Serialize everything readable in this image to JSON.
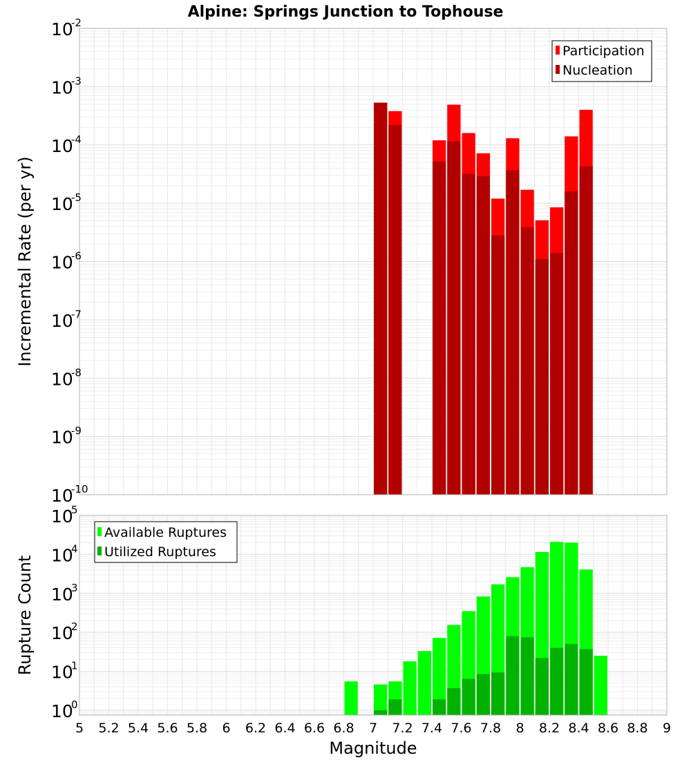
{
  "chart_data": [
    {
      "type": "bar",
      "title": "Alpine: Springs Junction to Tophouse",
      "ylabel": "Incremental Rate (per yr)",
      "xlabel": "",
      "yscale": "log",
      "ylim": [
        1e-10,
        0.01
      ],
      "xlim": [
        5,
        9
      ],
      "bar_width": 0.1,
      "grid": true,
      "legend_position": "top-right",
      "y_tick_labels": [
        {
          "base": "10",
          "exp": "-10",
          "value": 1e-10
        },
        {
          "base": "10",
          "exp": "-9",
          "value": 1e-09
        },
        {
          "base": "10",
          "exp": "-8",
          "value": 1e-08
        },
        {
          "base": "10",
          "exp": "-7",
          "value": 1e-07
        },
        {
          "base": "10",
          "exp": "-6",
          "value": 1e-06
        },
        {
          "base": "10",
          "exp": "-5",
          "value": 1e-05
        },
        {
          "base": "10",
          "exp": "-4",
          "value": 0.0001
        },
        {
          "base": "10",
          "exp": "-3",
          "value": 0.001
        },
        {
          "base": "10",
          "exp": "-2",
          "value": 0.01
        }
      ],
      "x": [
        7.05,
        7.15,
        7.45,
        7.55,
        7.65,
        7.75,
        7.85,
        7.95,
        8.05,
        8.15,
        8.25,
        8.35,
        8.45
      ],
      "series": [
        {
          "name": "Participation",
          "color": "#ff0000",
          "values": [
            0.00053,
            0.00038,
            0.00012,
            0.00049,
            0.00016,
            7.2e-05,
            1.2e-05,
            0.00013,
            1.7e-05,
            5.1e-06,
            8.5e-06,
            0.00014,
            0.0004
          ]
        },
        {
          "name": "Nucleation",
          "color": "#b20000",
          "values": [
            0.00053,
            0.00022,
            5.2e-05,
            0.000115,
            3.2e-05,
            2.9e-05,
            2.8e-06,
            3.7e-05,
            3.9e-06,
            1.1e-06,
            1.4e-06,
            1.6e-05,
            4.3e-05
          ]
        }
      ]
    },
    {
      "type": "bar",
      "title": "",
      "ylabel": "Rupture Count",
      "xlabel": "Magnitude",
      "yscale": "log",
      "ylim": [
        0.75,
        100000.0
      ],
      "xlim": [
        5,
        9
      ],
      "bar_width": 0.1,
      "grid": true,
      "legend_position": "top-left",
      "y_tick_labels": [
        {
          "base": "10",
          "exp": "0",
          "value": 1
        },
        {
          "base": "10",
          "exp": "1",
          "value": 10
        },
        {
          "base": "10",
          "exp": "2",
          "value": 100
        },
        {
          "base": "10",
          "exp": "3",
          "value": 1000
        },
        {
          "base": "10",
          "exp": "4",
          "value": 10000
        },
        {
          "base": "10",
          "exp": "5",
          "value": 100000
        }
      ],
      "x_tick_labels": [
        "5",
        "5.2",
        "5.4",
        "5.6",
        "5.8",
        "6",
        "6.2",
        "6.4",
        "6.6",
        "6.8",
        "7",
        "7.2",
        "7.4",
        "7.6",
        "7.8",
        "8",
        "8.2",
        "8.4",
        "8.6",
        "8.8",
        "9"
      ],
      "x": [
        6.85,
        7.05,
        7.15,
        7.25,
        7.35,
        7.45,
        7.55,
        7.65,
        7.75,
        7.85,
        7.95,
        8.05,
        8.15,
        8.25,
        8.35,
        8.45,
        8.55
      ],
      "series": [
        {
          "name": "Available Ruptures",
          "color": "#00ff00",
          "values": [
            5.5,
            4.6,
            5.5,
            18,
            33,
            72,
            155,
            350,
            830,
            1700,
            2600,
            4700,
            11500,
            21000,
            20000,
            4100,
            25
          ]
        },
        {
          "name": "Utilized Ruptures",
          "color": "#00b200",
          "values": [
            null,
            1.0,
            1.9,
            null,
            null,
            1.9,
            3.7,
            6.4,
            8.5,
            9.3,
            80,
            75,
            22,
            40,
            50,
            37,
            null
          ]
        }
      ]
    }
  ]
}
